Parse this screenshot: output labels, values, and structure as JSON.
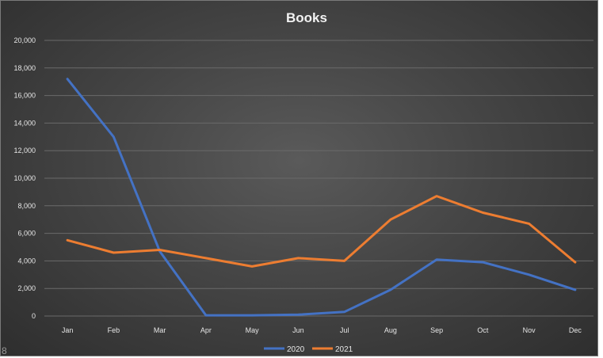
{
  "chart_data": {
    "type": "line",
    "title": "Books",
    "xlabel": "",
    "ylabel": "",
    "categories": [
      "Jan",
      "Feb",
      "Mar",
      "Apr",
      "May",
      "Jun",
      "Jul",
      "Aug",
      "Sep",
      "Oct",
      "Nov",
      "Dec"
    ],
    "ylim": [
      0,
      20000
    ],
    "yticks": [
      0,
      2000,
      4000,
      6000,
      8000,
      10000,
      12000,
      14000,
      16000,
      18000,
      20000
    ],
    "ytick_labels": [
      "0",
      "2,000",
      "4,000",
      "6,000",
      "8,000",
      "10,000",
      "12,000",
      "14,000",
      "16,000",
      "18,000",
      "20,000"
    ],
    "grid": true,
    "legend_position": "bottom",
    "series": [
      {
        "name": "2020",
        "color": "#4472C4",
        "values": [
          17200,
          13000,
          4700,
          50,
          50,
          100,
          300,
          1900,
          4100,
          3900,
          3000,
          1900
        ]
      },
      {
        "name": "2021",
        "color": "#ED7D31",
        "values": [
          5500,
          4600,
          4800,
          4200,
          3600,
          4200,
          4000,
          7000,
          8700,
          7500,
          6700,
          3900
        ]
      }
    ]
  },
  "corner_text": "8"
}
